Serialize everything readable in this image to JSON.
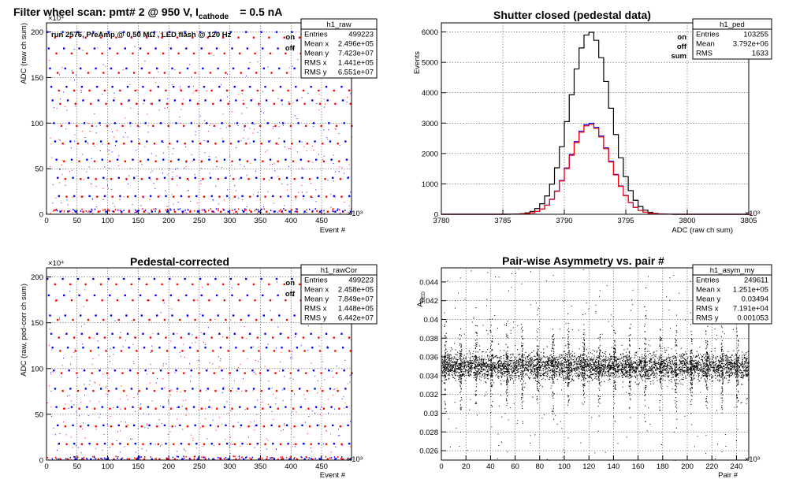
{
  "chart_data": [
    {
      "type": "scatter",
      "title": "Filter wheel scan: pmt#   2 @   950 V, I",
      "title_sub": "cathode",
      "title_tail": "= 0.5 nA",
      "annotation": "run 2576, PreAmp @ 0.50 MΩ , LED flash @  120 Hz",
      "xlabel": "Event #",
      "ylabel": "ADC (raw ch sum)",
      "x_exp": "×10³",
      "y_exp": "×10⁴",
      "xlim": [
        0,
        499
      ],
      "ylim": [
        0,
        210
      ],
      "xticks": [
        0,
        50,
        100,
        150,
        200,
        250,
        300,
        350,
        400,
        450
      ],
      "yticks": [
        0,
        50,
        100,
        150,
        200
      ],
      "legend": [
        {
          "label": "on",
          "color": "#0000ff"
        },
        {
          "label": "off",
          "color": "#ff0000"
        }
      ],
      "stats": {
        "name": "h1_raw",
        "rows": [
          [
            "Entries",
            "499223"
          ],
          [
            "Mean x",
            "2.496e+05"
          ],
          [
            "Mean y",
            "7.423e+07"
          ],
          [
            "RMS x",
            "1.441e+05"
          ],
          [
            "RMS y",
            "6.551e+07"
          ]
        ]
      },
      "levels": [
        200,
        182,
        160,
        140,
        125,
        100,
        80,
        60,
        40,
        20,
        3
      ],
      "cycle_period": 25
    },
    {
      "type": "line",
      "title": "Shutter closed (pedestal data)",
      "xlabel": "ADC (raw ch sum)",
      "ylabel": "Events",
      "x_exp": "×10³",
      "xlim": [
        3780,
        3805
      ],
      "ylim": [
        0,
        6300
      ],
      "xticks": [
        3780,
        3785,
        3790,
        3795,
        3800,
        3805
      ],
      "yticks": [
        0,
        1000,
        2000,
        3000,
        4000,
        5000,
        6000
      ],
      "legend": [
        {
          "label": "on",
          "color": "#0000ff"
        },
        {
          "label": "off",
          "color": "#ff0000"
        },
        {
          "label": "sum",
          "color": "#000000"
        }
      ],
      "stats": {
        "name": "h1_ped",
        "rows": [
          [
            "Entries",
            "103255"
          ],
          [
            "Mean",
            "3.792e+06"
          ],
          [
            "RMS",
            "1633"
          ]
        ]
      },
      "series": [
        {
          "name": "sum",
          "color": "#000000",
          "mean": 3792.1,
          "rms": 1.633,
          "peak": 6000
        },
        {
          "name": "on",
          "color": "#0000ff",
          "mean": 3792.1,
          "rms": 1.633,
          "peak": 3000
        },
        {
          "name": "off",
          "color": "#ff0000",
          "mean": 3792.1,
          "rms": 1.633,
          "peak": 2960
        }
      ]
    },
    {
      "type": "scatter",
      "title": "Pedestal-corrected",
      "xlabel": "Event #",
      "ylabel": "ADC (raw, ped-corr ch sum)",
      "x_exp": "×10³",
      "y_exp": "×10⁴",
      "xlim": [
        0,
        499
      ],
      "ylim": [
        0,
        210
      ],
      "xticks": [
        0,
        50,
        100,
        150,
        200,
        250,
        300,
        350,
        400,
        450
      ],
      "yticks": [
        0,
        50,
        100,
        150,
        200
      ],
      "legend": [
        {
          "label": "on",
          "color": "#0000ff"
        },
        {
          "label": "off",
          "color": "#ff0000"
        }
      ],
      "stats": {
        "name": "h1_rawCor",
        "rows": [
          [
            "Entries",
            "499223"
          ],
          [
            "Mean x",
            "2.458e+05"
          ],
          [
            "Mean y",
            "7.849e+07"
          ],
          [
            "RMS x",
            "1.448e+05"
          ],
          [
            "RMS y",
            "6.442e+07"
          ]
        ]
      },
      "levels": [
        198,
        180,
        158,
        138,
        123,
        98,
        78,
        58,
        38,
        18,
        1
      ],
      "cycle_period": 25
    },
    {
      "type": "scatter",
      "title": "Pair-wise Asymmetry vs. pair #",
      "xlabel": "Pair #",
      "ylabel": "A_BED",
      "x_exp": "×10³",
      "xlim": [
        0,
        250
      ],
      "ylim": [
        0.025,
        0.0455
      ],
      "xticks": [
        0,
        20,
        40,
        60,
        80,
        100,
        120,
        140,
        160,
        180,
        200,
        220,
        240
      ],
      "yticks": [
        0.026,
        0.028,
        0.03,
        0.032,
        0.034,
        0.036,
        0.038,
        0.04,
        0.042,
        0.044
      ],
      "stats": {
        "name": "h1_asym_my",
        "rows": [
          [
            "Entries",
            "249611"
          ],
          [
            "Mean x",
            "1.251e+05"
          ],
          [
            "Mean y",
            "0.03494"
          ],
          [
            "RMS x",
            "7.191e+04"
          ],
          [
            "RMS y",
            "0.001053"
          ]
        ]
      },
      "band_center": 0.035,
      "band_halfwidth": 0.0009,
      "spike_period": 12.5,
      "spike_offset": 3
    }
  ]
}
